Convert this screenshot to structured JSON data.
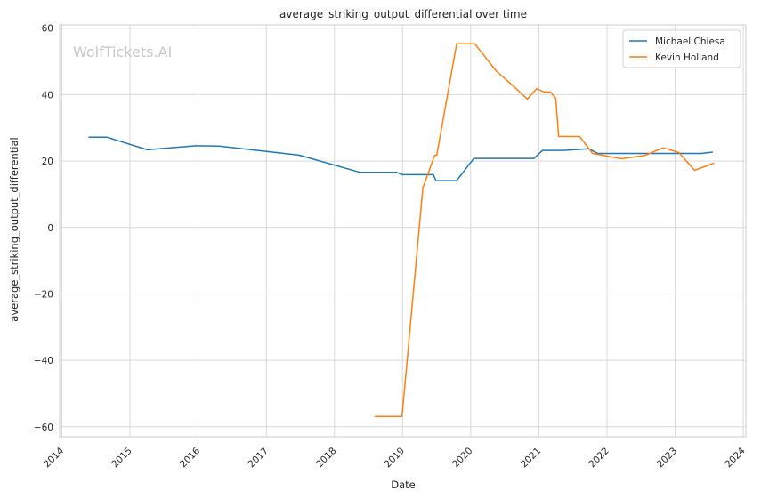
{
  "chart_data": {
    "type": "line",
    "title": "average_striking_output_differential over time",
    "xlabel": "Date",
    "ylabel": "average_striking_output_differential",
    "watermark": "WolfTickets.AI",
    "xlim": [
      "2013-12-20",
      "2024-01-15"
    ],
    "ylim": [
      -63,
      61
    ],
    "x_ticks": [
      "2014",
      "2015",
      "2016",
      "2017",
      "2018",
      "2019",
      "2020",
      "2021",
      "2022",
      "2023",
      "2024"
    ],
    "y_ticks": [
      -60,
      -40,
      -20,
      0,
      20,
      40,
      60
    ],
    "grid": true,
    "legend_position": "top-right",
    "series": [
      {
        "name": "Michael Chiesa",
        "color": "#1f77b4",
        "points": [
          [
            "2014-05-24",
            27.2
          ],
          [
            "2014-08-30",
            27.2
          ],
          [
            "2015-04-04",
            23.4
          ],
          [
            "2015-12-19",
            24.6
          ],
          [
            "2016-04-23",
            24.5
          ],
          [
            "2017-06-25",
            21.8
          ],
          [
            "2018-05-19",
            16.6
          ],
          [
            "2018-12-01",
            16.6
          ],
          [
            "2018-12-30",
            15.9
          ],
          [
            "2019-06-15",
            15.9
          ],
          [
            "2019-06-29",
            14.1
          ],
          [
            "2019-10-18",
            14.1
          ],
          [
            "2020-01-18",
            20.8
          ],
          [
            "2020-12-05",
            20.8
          ],
          [
            "2021-01-20",
            23.2
          ],
          [
            "2021-05-15",
            23.2
          ],
          [
            "2021-09-25",
            23.7
          ],
          [
            "2021-11-13",
            22.3
          ],
          [
            "2022-06-18",
            22.3
          ],
          [
            "2023-02-04",
            22.3
          ],
          [
            "2023-05-20",
            22.3
          ],
          [
            "2023-07-22",
            22.7
          ]
        ]
      },
      {
        "name": "Kevin Holland",
        "color": "#ff7f0e",
        "points": [
          [
            "2018-08-04",
            -56.9
          ],
          [
            "2018-12-29",
            -56.9
          ],
          [
            "2019-04-20",
            11.9
          ],
          [
            "2019-06-22",
            21.7
          ],
          [
            "2019-07-03",
            21.8
          ],
          [
            "2019-10-18",
            55.3
          ],
          [
            "2020-01-23",
            55.3
          ],
          [
            "2020-05-16",
            47.2
          ],
          [
            "2020-08-22",
            42.3
          ],
          [
            "2020-10-31",
            38.7
          ],
          [
            "2020-12-20",
            41.8
          ],
          [
            "2021-01-30",
            40.8
          ],
          [
            "2021-03-03",
            40.8
          ],
          [
            "2021-04-01",
            38.9
          ],
          [
            "2021-04-17",
            27.4
          ],
          [
            "2021-08-07",
            27.4
          ],
          [
            "2021-10-16",
            22.3
          ],
          [
            "2022-03-19",
            20.7
          ],
          [
            "2022-07-23",
            21.7
          ],
          [
            "2022-10-29",
            24.0
          ],
          [
            "2023-01-21",
            22.6
          ],
          [
            "2023-04-15",
            17.2
          ],
          [
            "2023-07-29",
            19.4
          ]
        ]
      }
    ]
  }
}
